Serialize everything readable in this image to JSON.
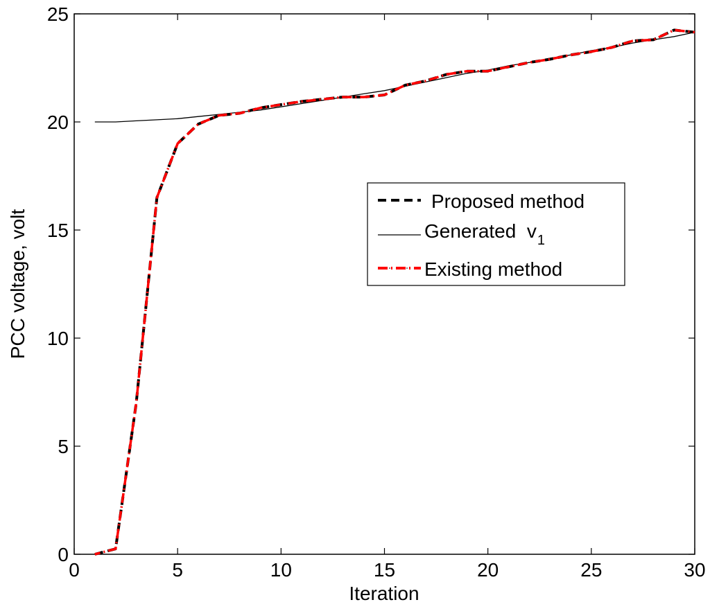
{
  "chart_data": {
    "type": "line",
    "title": "",
    "xlabel": "Iteration",
    "ylabel": "PCC voltage,  volt",
    "xlim": [
      0,
      30
    ],
    "ylim": [
      0,
      25
    ],
    "xticks": [
      0,
      5,
      10,
      15,
      20,
      25,
      30
    ],
    "yticks": [
      0,
      5,
      10,
      15,
      20,
      25
    ],
    "grid": false,
    "legend_position": "center-right",
    "series": [
      {
        "name": "Proposed method",
        "style": "dashed",
        "color": "#000000",
        "x": [
          1,
          2,
          3,
          4,
          5,
          6,
          7,
          8,
          9,
          10,
          11,
          12,
          13,
          14,
          15,
          16,
          17,
          18,
          19,
          20,
          21,
          22,
          23,
          24,
          25,
          26,
          27,
          28,
          29,
          30
        ],
        "y": [
          0.0,
          0.25,
          7.0,
          16.5,
          19.0,
          19.9,
          20.3,
          20.4,
          20.65,
          20.8,
          20.95,
          21.05,
          21.15,
          21.15,
          21.25,
          21.7,
          21.9,
          22.2,
          22.35,
          22.35,
          22.55,
          22.75,
          22.9,
          23.1,
          23.25,
          23.45,
          23.75,
          23.8,
          24.25,
          24.15
        ]
      },
      {
        "name": "Generated  v",
        "name_subscript": "1",
        "style": "solid",
        "color": "#000000",
        "x": [
          1,
          2,
          3,
          4,
          5,
          6,
          7,
          8,
          9,
          10,
          11,
          12,
          13,
          14,
          15,
          16,
          17,
          18,
          19,
          20,
          21,
          22,
          23,
          24,
          25,
          26,
          27,
          28,
          29,
          30
        ],
        "y": [
          20.0,
          20.0,
          20.05,
          20.1,
          20.15,
          20.25,
          20.35,
          20.45,
          20.55,
          20.7,
          20.85,
          21.0,
          21.15,
          21.3,
          21.45,
          21.65,
          21.85,
          22.05,
          22.25,
          22.4,
          22.6,
          22.75,
          22.95,
          23.1,
          23.3,
          23.45,
          23.65,
          23.8,
          23.95,
          24.15
        ]
      },
      {
        "name": "Existing method",
        "style": "dashdot",
        "color": "#ff0000",
        "x": [
          1,
          2,
          3,
          4,
          5,
          6,
          7,
          8,
          9,
          10,
          11,
          12,
          13,
          14,
          15,
          16,
          17,
          18,
          19,
          20,
          21,
          22,
          23,
          24,
          25,
          26,
          27,
          28,
          29,
          30
        ],
        "y": [
          0.0,
          0.25,
          7.0,
          16.5,
          19.0,
          19.9,
          20.3,
          20.4,
          20.65,
          20.8,
          20.95,
          21.05,
          21.15,
          21.15,
          21.25,
          21.7,
          21.9,
          22.2,
          22.35,
          22.35,
          22.55,
          22.75,
          22.9,
          23.1,
          23.25,
          23.45,
          23.75,
          23.8,
          24.25,
          24.15
        ]
      }
    ]
  }
}
